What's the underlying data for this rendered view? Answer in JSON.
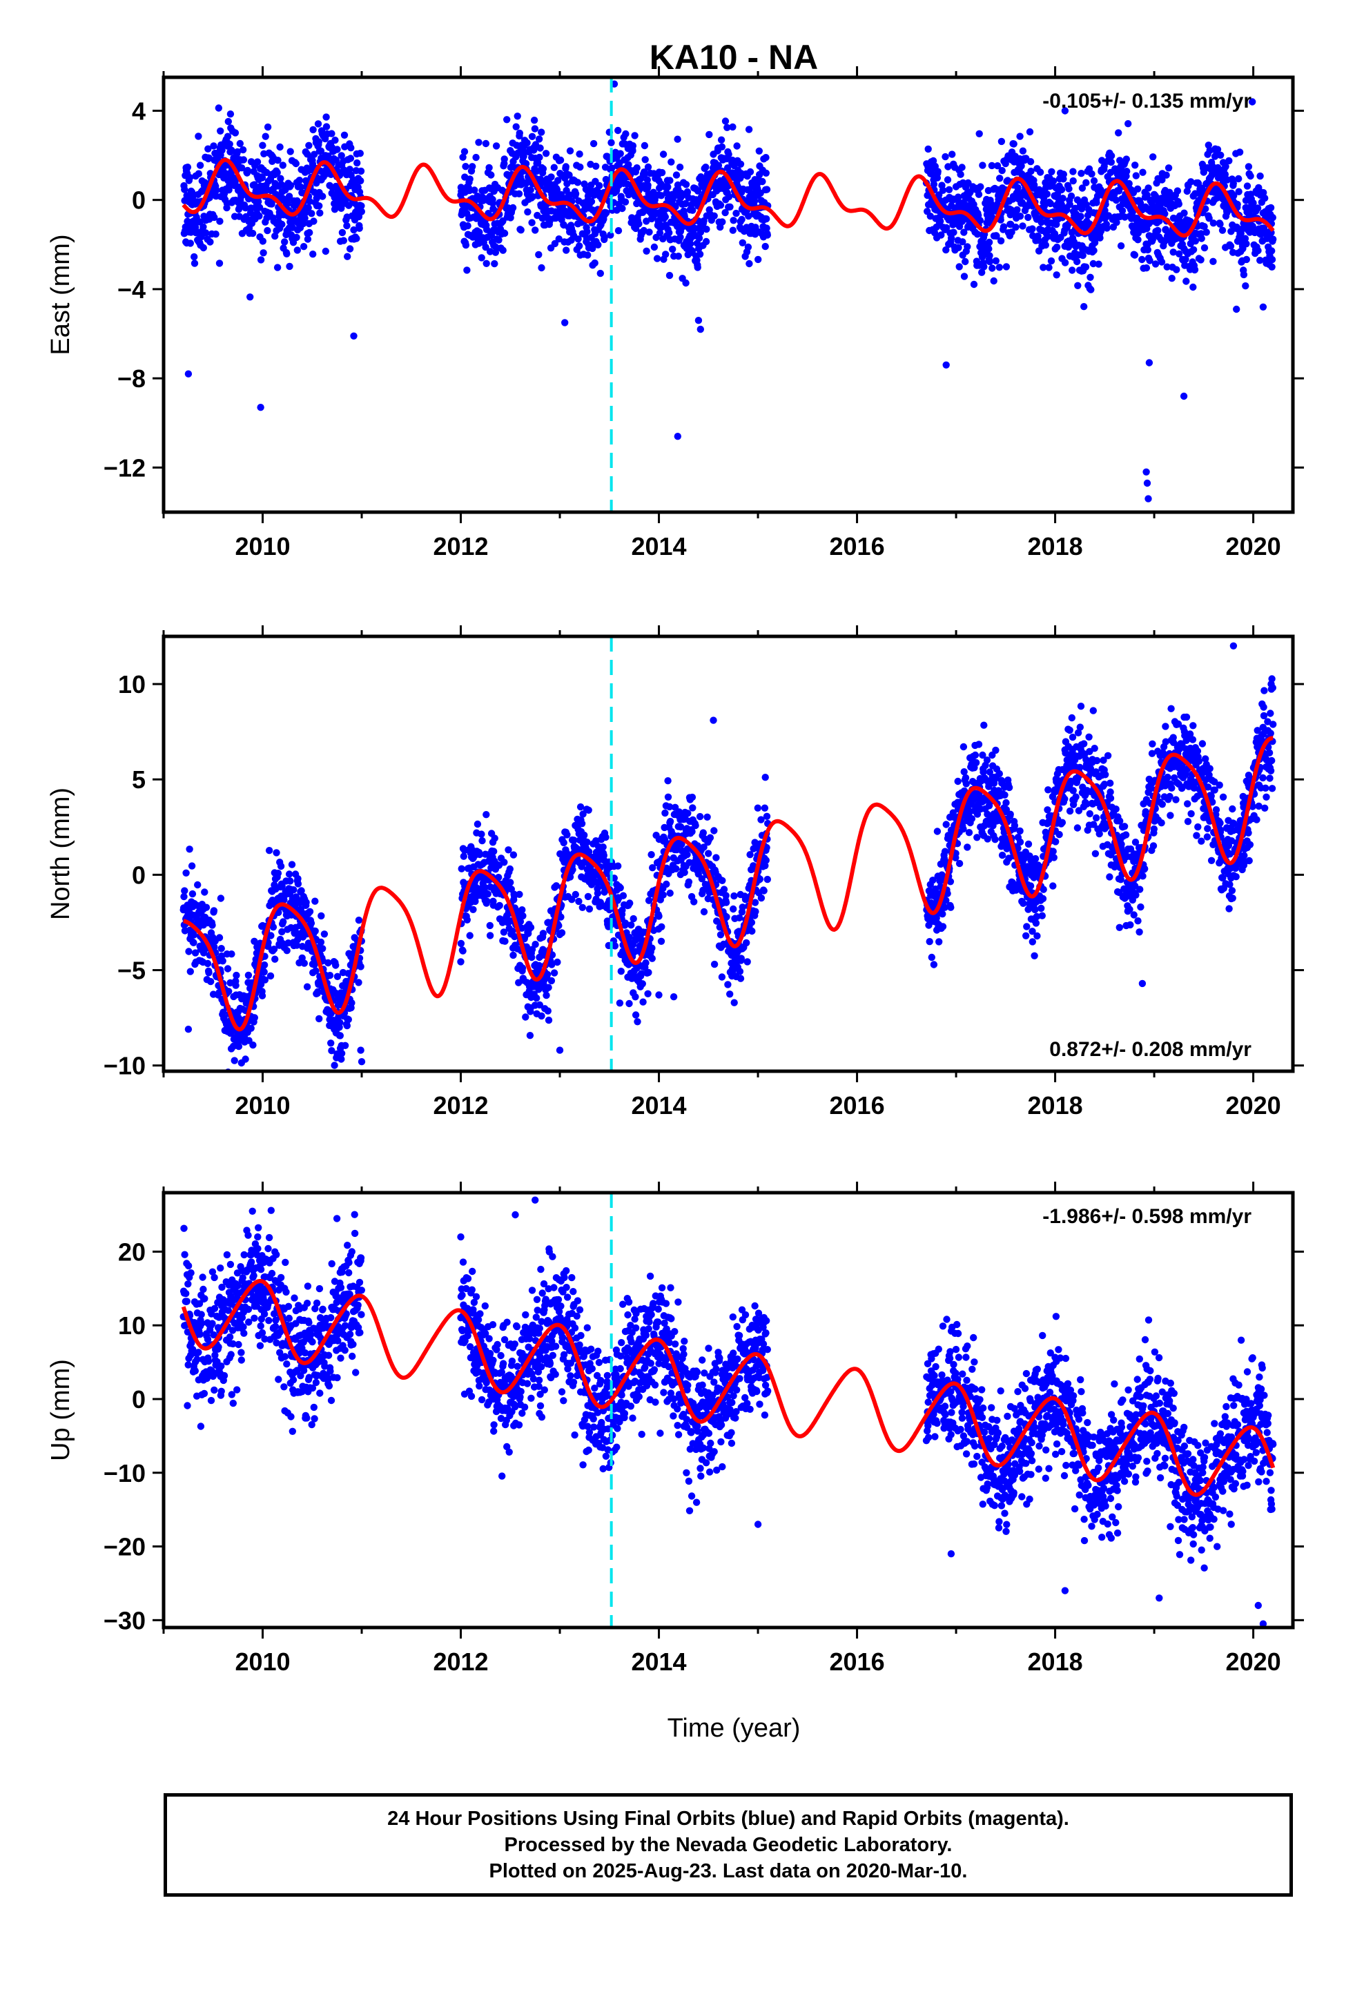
{
  "chart_data": {
    "title": "KA10 - NA",
    "type": "scatter",
    "x_axis_label": "Time (year)",
    "x_range": [
      2009.0,
      2020.4
    ],
    "x_ticks": [
      2010,
      2012,
      2014,
      2016,
      2018,
      2020
    ],
    "step_marker_year": 2013.52,
    "colors": {
      "points": "#0000ff",
      "model": "#ff0000",
      "step_line": "#00e5ee"
    },
    "panels": [
      {
        "id": "east",
        "ylabel": "East (mm)",
        "ylim": [
          -14,
          5.5
        ],
        "yticks": [
          4,
          0,
          -4,
          -8,
          -12
        ],
        "rate_text": "-0.105+/- 0.135 mm/yr",
        "rate_position": "top-right",
        "model": {
          "trend_mm_per_yr": -0.105,
          "offset": -0.1,
          "annual_amp": 0.9,
          "annual_phase": 3.6,
          "semiannual_amp": 0.5,
          "semiannual_phase": 0.3
        },
        "data_segments": [
          [
            2009.2,
            2011.0
          ],
          [
            2012.0,
            2013.5
          ],
          [
            2013.5,
            2015.1
          ],
          [
            2016.7,
            2020.2
          ]
        ],
        "scatter_sigma": 1.1,
        "outliers": [
          [
            2009.25,
            -7.8
          ],
          [
            2009.98,
            -9.3
          ],
          [
            2014.19,
            -10.6
          ],
          [
            2013.55,
            5.2
          ],
          [
            2016.9,
            -7.4
          ],
          [
            2018.95,
            -7.3
          ],
          [
            2018.92,
            -12.2
          ],
          [
            2018.93,
            -12.7
          ],
          [
            2018.94,
            -13.4
          ],
          [
            2019.3,
            -8.8
          ],
          [
            2018.1,
            4.0
          ],
          [
            2014.4,
            -5.4
          ],
          [
            2014.42,
            -5.8
          ],
          [
            2013.05,
            -5.5
          ],
          [
            2019.99,
            4.4
          ],
          [
            2020.1,
            -4.8
          ],
          [
            2019.83,
            -4.9
          ],
          [
            2010.92,
            -6.1
          ]
        ]
      },
      {
        "id": "north",
        "ylabel": "North (mm)",
        "ylim": [
          -10.3,
          12.5
        ],
        "yticks": [
          10,
          5,
          0,
          -5,
          -10
        ],
        "rate_text": "0.872+/- 0.208 mm/yr",
        "rate_position": "bottom-right",
        "model": {
          "trend_mm_per_yr": 0.872,
          "offset": 0.0,
          "annual_amp": 3.0,
          "annual_phase": 6.28,
          "semiannual_amp": 0.6,
          "semiannual_phase": 1.0
        },
        "data_segments": [
          [
            2009.2,
            2011.0
          ],
          [
            2012.0,
            2013.5
          ],
          [
            2013.5,
            2015.1
          ],
          [
            2016.7,
            2020.2
          ]
        ],
        "scatter_sigma": 1.2,
        "outliers": [
          [
            2009.25,
            -8.1
          ],
          [
            2010.99,
            -9.2
          ],
          [
            2011.0,
            -9.8
          ],
          [
            2013.0,
            -9.2
          ],
          [
            2014.0,
            -6.3
          ],
          [
            2014.15,
            -6.4
          ],
          [
            2018.88,
            -5.7
          ],
          [
            2018.85,
            -3.0
          ],
          [
            2019.8,
            12.0
          ],
          [
            2014.55,
            8.1
          ]
        ]
      },
      {
        "id": "up",
        "ylabel": "Up (mm)",
        "ylim": [
          -31,
          28
        ],
        "yticks": [
          20,
          10,
          0,
          -10,
          -20,
          -30
        ],
        "rate_text": "-1.986+/- 0.598 mm/yr",
        "rate_position": "top-right",
        "model": {
          "trend_mm_per_yr": -1.986,
          "offset": 1.0,
          "annual_amp": 5.0,
          "annual_phase": 1.9,
          "semiannual_amp": 0.6,
          "semiannual_phase": 0.5
        },
        "data_segments": [
          [
            2009.2,
            2011.0
          ],
          [
            2012.0,
            2013.5
          ],
          [
            2013.5,
            2015.1
          ],
          [
            2016.7,
            2020.2
          ]
        ],
        "scatter_sigma": 4.0,
        "outliers": [
          [
            2012.75,
            27.0
          ],
          [
            2012.55,
            25.0
          ],
          [
            2010.75,
            24.5
          ],
          [
            2009.95,
            22.0
          ],
          [
            2012.0,
            22.0
          ],
          [
            2020.1,
            -30.5
          ],
          [
            2020.05,
            -28.0
          ],
          [
            2016.95,
            -21.0
          ],
          [
            2018.1,
            -26.0
          ],
          [
            2019.05,
            -27.0
          ],
          [
            2015.0,
            -17.0
          ]
        ]
      }
    ]
  },
  "footer": {
    "line1": "24 Hour Positions Using Final Orbits (blue) and Rapid Orbits (magenta).",
    "line2": "Processed by the Nevada Geodetic Laboratory.",
    "line3": "Plotted on 2025-Aug-23. Last data on 2020-Mar-10."
  }
}
